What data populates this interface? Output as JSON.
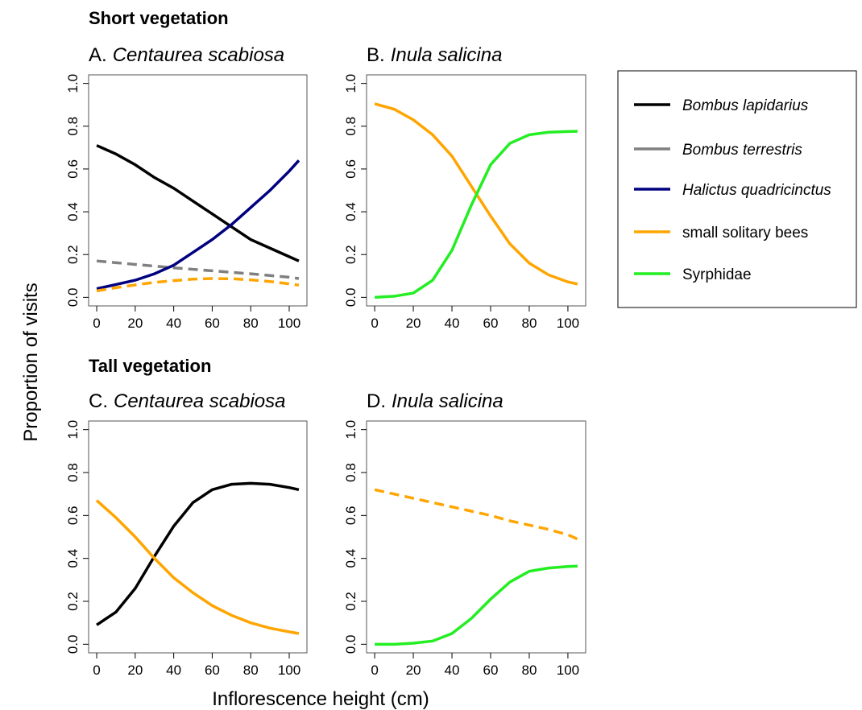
{
  "headings": [
    "Short vegetation",
    "Tall vegetation"
  ],
  "ylabel": "Proportion of visits",
  "xlabel": "Inflorescence height (cm)",
  "legend": [
    {
      "name": "Bombus lapidarius",
      "color": "#000000",
      "italic": true
    },
    {
      "name": "Bombus terrestris",
      "color": "#808080",
      "italic": true
    },
    {
      "name": "Halictus quadricinctus",
      "color": "#000080",
      "italic": true
    },
    {
      "name": "small solitary bees",
      "color": "#ffa500",
      "italic": false
    },
    {
      "name": "Syrphidae",
      "color": "#22ee22",
      "italic": false
    }
  ],
  "chart_data": [
    {
      "type": "line",
      "label": "A.",
      "title": "Centaurea scabiosa",
      "x": [
        0,
        10,
        20,
        30,
        40,
        50,
        60,
        70,
        80,
        90,
        100,
        105
      ],
      "series": [
        {
          "color": "#000000",
          "dashed": false,
          "values": [
            0.71,
            0.67,
            0.62,
            0.56,
            0.51,
            0.45,
            0.39,
            0.33,
            0.27,
            0.23,
            0.19,
            0.17
          ]
        },
        {
          "color": "#808080",
          "dashed": true,
          "values": [
            0.17,
            0.162,
            0.154,
            0.146,
            0.138,
            0.131,
            0.124,
            0.117,
            0.11,
            0.102,
            0.094,
            0.088
          ]
        },
        {
          "color": "#000080",
          "dashed": false,
          "values": [
            0.04,
            0.06,
            0.08,
            0.11,
            0.15,
            0.21,
            0.27,
            0.34,
            0.42,
            0.5,
            0.59,
            0.64
          ]
        },
        {
          "color": "#ffa500",
          "dashed": true,
          "values": [
            0.03,
            0.045,
            0.058,
            0.07,
            0.078,
            0.085,
            0.088,
            0.087,
            0.082,
            0.074,
            0.063,
            0.057
          ]
        }
      ],
      "xlim": [
        -4.2,
        109.2
      ],
      "ylim": [
        -0.04,
        1.04
      ],
      "xticks": [
        0,
        20,
        40,
        60,
        80,
        100
      ],
      "yticks": [
        {
          "value": 0,
          "label": "0.0"
        },
        0.2,
        0.4,
        0.6,
        0.8,
        {
          "value": 1,
          "label": "1.0"
        }
      ]
    },
    {
      "type": "line",
      "label": "B.",
      "title": "Inula salicina",
      "x": [
        0,
        10,
        20,
        30,
        40,
        50,
        60,
        70,
        80,
        90,
        100,
        105
      ],
      "series": [
        {
          "color": "#ffa500",
          "dashed": false,
          "values": [
            0.905,
            0.88,
            0.83,
            0.76,
            0.66,
            0.52,
            0.38,
            0.25,
            0.16,
            0.105,
            0.072,
            0.062
          ]
        },
        {
          "color": "#22ee22",
          "dashed": false,
          "values": [
            0.0,
            0.005,
            0.02,
            0.08,
            0.22,
            0.43,
            0.62,
            0.72,
            0.76,
            0.772,
            0.775,
            0.776
          ]
        }
      ],
      "xlim": [
        -4.2,
        109.2
      ],
      "ylim": [
        -0.04,
        1.04
      ],
      "xticks": [
        0,
        20,
        40,
        60,
        80,
        100
      ],
      "yticks": [
        {
          "value": 0,
          "label": "0.0"
        },
        0.2,
        0.4,
        0.6,
        0.8,
        {
          "value": 1,
          "label": "1.0"
        }
      ]
    },
    {
      "type": "line",
      "label": "C.",
      "title": "Centaurea scabiosa",
      "x": [
        0,
        10,
        20,
        30,
        40,
        50,
        60,
        70,
        80,
        90,
        100,
        105
      ],
      "series": [
        {
          "color": "#000000",
          "dashed": false,
          "values": [
            0.09,
            0.15,
            0.26,
            0.41,
            0.55,
            0.66,
            0.72,
            0.745,
            0.75,
            0.745,
            0.73,
            0.72
          ]
        },
        {
          "color": "#ffa500",
          "dashed": false,
          "values": [
            0.67,
            0.59,
            0.5,
            0.4,
            0.31,
            0.24,
            0.18,
            0.135,
            0.1,
            0.075,
            0.058,
            0.05
          ]
        }
      ],
      "xlim": [
        -4.2,
        109.2
      ],
      "ylim": [
        -0.04,
        1.04
      ],
      "xticks": [
        0,
        20,
        40,
        60,
        80,
        100
      ],
      "yticks": [
        {
          "value": 0,
          "label": "0.0"
        },
        0.2,
        0.4,
        0.6,
        0.8,
        {
          "value": 1,
          "label": "1.0"
        }
      ]
    },
    {
      "type": "line",
      "label": "D.",
      "title": "Inula salicina",
      "x": [
        0,
        10,
        20,
        30,
        40,
        50,
        60,
        70,
        80,
        90,
        100,
        105
      ],
      "series": [
        {
          "color": "#ffa500",
          "dashed": true,
          "values": [
            0.72,
            0.7,
            0.68,
            0.66,
            0.64,
            0.62,
            0.6,
            0.575,
            0.555,
            0.535,
            0.51,
            0.49
          ]
        },
        {
          "color": "#22ee22",
          "dashed": false,
          "values": [
            0.0,
            0.0,
            0.005,
            0.015,
            0.05,
            0.12,
            0.21,
            0.29,
            0.34,
            0.355,
            0.362,
            0.364
          ]
        }
      ],
      "xlim": [
        -4.2,
        109.2
      ],
      "ylim": [
        -0.04,
        1.04
      ],
      "xticks": [
        0,
        20,
        40,
        60,
        80,
        100
      ],
      "yticks": [
        {
          "value": 0,
          "label": "0.0"
        },
        0.2,
        0.4,
        0.6,
        0.8,
        {
          "value": 1,
          "label": "1.0"
        }
      ]
    }
  ]
}
